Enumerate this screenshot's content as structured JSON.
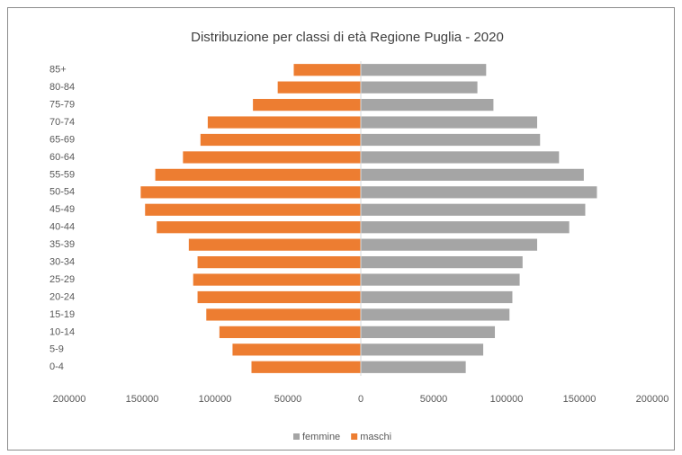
{
  "chart_data": {
    "type": "pyramid",
    "title": "Distribuzione per classi di età Regione Puglia - 2020",
    "categories": [
      "0-4",
      "5-9",
      "10-14",
      "15-19",
      "20-24",
      "25-29",
      "30-34",
      "35-39",
      "40-44",
      "45-49",
      "50-54",
      "55-59",
      "60-64",
      "65-69",
      "70-74",
      "75-79",
      "80-84",
      "85+"
    ],
    "series": [
      {
        "name": "femmine",
        "color": "#a5a5a5",
        "values": [
          72000,
          84000,
          92000,
          102000,
          104000,
          109000,
          111000,
          121000,
          143000,
          154000,
          162000,
          153000,
          136000,
          123000,
          121000,
          91000,
          80000,
          86000
        ]
      },
      {
        "name": "maschi",
        "color": "#ed7d31",
        "values": [
          -75000,
          -88000,
          -97000,
          -106000,
          -112000,
          -115000,
          -112000,
          -118000,
          -140000,
          -148000,
          -151000,
          -141000,
          -122000,
          -110000,
          -105000,
          -74000,
          -57000,
          -46000
        ]
      }
    ],
    "xlim": [
      -200000,
      200000
    ],
    "xticks": [
      {
        "value": -200000,
        "label": "200000"
      },
      {
        "value": -150000,
        "label": "150000"
      },
      {
        "value": -100000,
        "label": "100000"
      },
      {
        "value": -50000,
        "label": "50000"
      },
      0,
      50000,
      100000,
      150000,
      200000
    ],
    "grid": false,
    "legend": "bottom"
  }
}
